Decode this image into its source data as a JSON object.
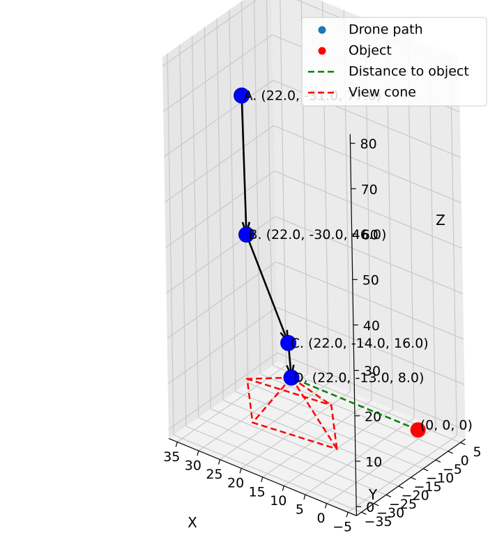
{
  "chart_data": {
    "type": "scatter",
    "projection": "3d",
    "title": "",
    "xlabel": "X",
    "ylabel": "Y",
    "zlabel": "Z",
    "xlim": [
      -7,
      37
    ],
    "ylim": [
      -37,
      7
    ],
    "zlim": [
      -2,
      82
    ],
    "x_ticks": [
      "−5",
      "0",
      "5",
      "10",
      "15",
      "20",
      "25",
      "30",
      "35"
    ],
    "y_ticks": [
      "−35",
      "−30",
      "−25",
      "−20",
      "−15",
      "−10",
      "−5",
      "0",
      "5"
    ],
    "z_ticks": [
      "0",
      "10",
      "20",
      "30",
      "40",
      "50",
      "60",
      "70",
      "80"
    ],
    "grid": true,
    "series": [
      {
        "name": "Drone path",
        "color": "#0000ff",
        "legend_color": "#1f77b4",
        "marker": "circle",
        "points": [
          {
            "label": "A. (22.0, -31.0, 77.0)",
            "x": 22.0,
            "y": -31.0,
            "z": 77.0
          },
          {
            "label": "B. (22.0, -30.0, 46.0)",
            "x": 22.0,
            "y": -30.0,
            "z": 46.0
          },
          {
            "label": "C. (22.0, -14.0, 16.0)",
            "x": 22.0,
            "y": -14.0,
            "z": 16.0
          },
          {
            "label": "D. (22.0, -13.0, 8.0)",
            "x": 22.0,
            "y": -13.0,
            "z": 8.0
          }
        ]
      },
      {
        "name": "Object",
        "color": "#ff0000",
        "marker": "circle",
        "points": [
          {
            "label": "(0, 0, 0)",
            "x": 0,
            "y": 0,
            "z": 0
          }
        ]
      },
      {
        "name": "Distance to object",
        "color": "#008000",
        "style": "dashed",
        "from": [
          0,
          0,
          0
        ],
        "to": [
          22.0,
          -13.0,
          8.0
        ]
      },
      {
        "name": "View cone",
        "color": "#ff0000",
        "style": "dashed",
        "apex": [
          22.0,
          -13.0,
          8.0
        ],
        "base_corners": [
          [
            8,
            -19,
            0
          ],
          [
            18,
            -4,
            0
          ],
          [
            36,
            -7,
            0
          ],
          [
            26,
            -22,
            0
          ]
        ]
      }
    ],
    "arrows": [
      {
        "from": "A",
        "to": "B",
        "color": "#000000"
      },
      {
        "from": "B",
        "to": "C",
        "color": "#000000"
      },
      {
        "from": "C",
        "to": "D",
        "color": "#000000"
      }
    ],
    "legend": {
      "position": "top-right",
      "entries": [
        {
          "label": "Drone path",
          "kind": "dot",
          "color": "#1f77b4"
        },
        {
          "label": "Object",
          "kind": "dot",
          "color": "#ff0000"
        },
        {
          "label": "Distance to object",
          "kind": "dash",
          "color": "#008000"
        },
        {
          "label": "View cone",
          "kind": "dash",
          "color": "#ff0000"
        }
      ]
    }
  }
}
